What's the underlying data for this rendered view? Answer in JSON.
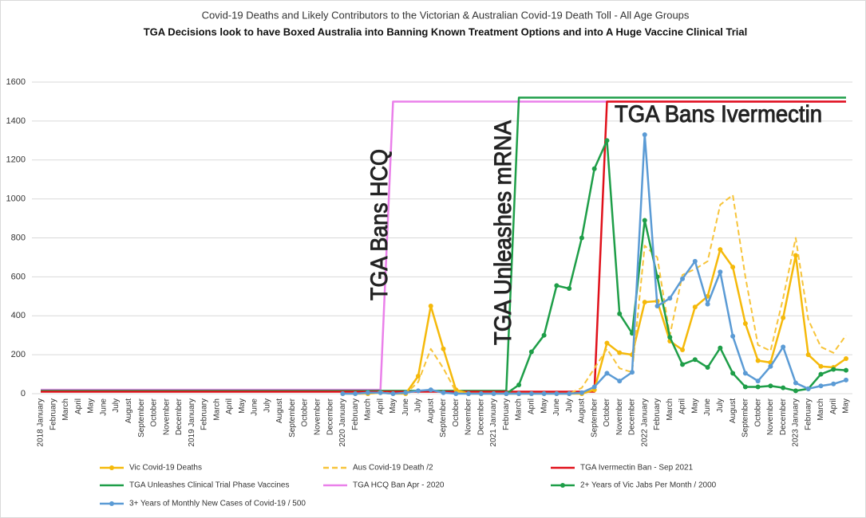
{
  "chart_data": {
    "type": "line",
    "title": "Covid-19 Deaths and Likely Contributors to the Victorian & Australian Covid-19 Death Toll - All Age Groups",
    "subtitle": "TGA Decisions look to have Boxed Australia into Banning Known Treatment Options and into A Huge Vaccine Clinical Trial",
    "annotations": [
      "TGA Bans HCQ",
      "TGA Unleashes mRNA",
      "TGA Bans Ivermectin"
    ],
    "categories": [
      "2018 January",
      "February",
      "March",
      "April",
      "May",
      "June",
      "July",
      "August",
      "September",
      "October",
      "November",
      "December",
      "2019 January",
      "February",
      "March",
      "April",
      "May",
      "June",
      "July",
      "August",
      "September",
      "October",
      "November",
      "December",
      "2020 January",
      "February",
      "March",
      "April",
      "May",
      "June",
      "July",
      "August",
      "September",
      "October",
      "November",
      "December",
      "2021 January",
      "February",
      "March",
      "April",
      "May",
      "June",
      "July",
      "August",
      "September",
      "October",
      "November",
      "December",
      "2022 January",
      "February",
      "March",
      "April",
      "May",
      "June",
      "July",
      "August",
      "September",
      "October",
      "November",
      "December",
      "2023 January",
      "February",
      "March",
      "April",
      "May"
    ],
    "ylim": [
      0,
      1600
    ],
    "yticks": [
      0,
      200,
      400,
      600,
      800,
      1000,
      1200,
      1400,
      1600
    ],
    "grid": true,
    "series": [
      {
        "name": "Vic Covid-19 Deaths",
        "color": "#f5b90a",
        "markers": true,
        "dashed": false,
        "values": [
          null,
          null,
          null,
          null,
          null,
          null,
          null,
          null,
          null,
          null,
          null,
          null,
          null,
          null,
          null,
          null,
          null,
          null,
          null,
          null,
          null,
          null,
          null,
          null,
          0,
          0,
          0,
          5,
          0,
          0,
          90,
          450,
          230,
          20,
          0,
          0,
          0,
          0,
          0,
          0,
          0,
          0,
          0,
          0,
          20,
          260,
          210,
          200,
          470,
          475,
          270,
          225,
          445,
          500,
          740,
          650,
          360,
          170,
          160,
          390,
          710,
          200,
          140,
          135,
          180
        ]
      },
      {
        "name": "Aus Covid-19 Death /2",
        "color": "#f7c43a",
        "markers": false,
        "dashed": true,
        "values": [
          null,
          null,
          null,
          null,
          null,
          null,
          null,
          null,
          null,
          null,
          null,
          null,
          null,
          null,
          null,
          null,
          null,
          null,
          null,
          null,
          null,
          null,
          null,
          null,
          0,
          0,
          0,
          10,
          0,
          0,
          60,
          230,
          130,
          10,
          0,
          0,
          0,
          0,
          0,
          0,
          0,
          0,
          0,
          30,
          130,
          230,
          130,
          110,
          760,
          700,
          300,
          610,
          640,
          680,
          970,
          1020,
          600,
          250,
          220,
          490,
          800,
          380,
          240,
          210,
          300
        ]
      },
      {
        "name": "TGA Ivermectin Ban - Sep 2021",
        "color": "#e0101a",
        "markers": false,
        "dashed": false,
        "values": [
          10,
          10,
          10,
          10,
          10,
          10,
          10,
          10,
          10,
          10,
          10,
          10,
          10,
          10,
          10,
          10,
          10,
          10,
          10,
          10,
          10,
          10,
          10,
          10,
          10,
          10,
          10,
          10,
          10,
          10,
          10,
          10,
          10,
          10,
          10,
          10,
          10,
          10,
          10,
          10,
          10,
          10,
          10,
          10,
          10,
          1500,
          1500,
          1500,
          1500,
          1500,
          1500,
          1500,
          1500,
          1500,
          1500,
          1500,
          1500,
          1500,
          1500,
          1500,
          1500,
          1500,
          1500,
          1500,
          1500
        ]
      },
      {
        "name": "TGA Unleashes Clinical Trial Phase Vaccines",
        "color": "#1e9e48",
        "markers": false,
        "dashed": false,
        "values": [
          15,
          15,
          15,
          15,
          15,
          15,
          15,
          15,
          15,
          15,
          15,
          15,
          15,
          15,
          15,
          15,
          15,
          15,
          15,
          15,
          15,
          15,
          15,
          15,
          15,
          15,
          15,
          15,
          15,
          15,
          15,
          15,
          15,
          15,
          15,
          15,
          15,
          15,
          1520,
          1520,
          1520,
          1520,
          1520,
          1520,
          1520,
          1520,
          1520,
          1520,
          1520,
          1520,
          1520,
          1520,
          1520,
          1520,
          1520,
          1520,
          1520,
          1520,
          1520,
          1520,
          1520,
          1520,
          1520,
          1520,
          1520
        ]
      },
      {
        "name": "TGA HCQ Ban Apr - 2020",
        "color": "#ea80ea",
        "markers": false,
        "dashed": false,
        "values": [
          20,
          20,
          20,
          20,
          20,
          20,
          20,
          20,
          20,
          20,
          20,
          20,
          20,
          20,
          20,
          20,
          20,
          20,
          20,
          20,
          20,
          20,
          20,
          20,
          20,
          20,
          20,
          20,
          1500,
          1500,
          1500,
          1500,
          1500,
          1500,
          1500,
          1500,
          1500,
          1500,
          1500,
          1500,
          1500,
          1500,
          1500,
          1500,
          1500,
          1500,
          1500,
          1500,
          1500,
          1500,
          1500,
          1500,
          1500,
          1500,
          1500,
          1500,
          1500,
          1500,
          1500,
          1500,
          1500,
          1500,
          1500,
          1500,
          1500
        ]
      },
      {
        "name": "2+ Years of Vic Jabs Per Month / 2000",
        "color": "#1e9e48",
        "markers": true,
        "dashed": false,
        "values": [
          null,
          null,
          null,
          null,
          null,
          null,
          null,
          null,
          null,
          null,
          null,
          null,
          null,
          null,
          null,
          null,
          null,
          null,
          null,
          null,
          null,
          null,
          null,
          null,
          null,
          null,
          null,
          null,
          null,
          null,
          null,
          null,
          null,
          null,
          null,
          null,
          null,
          0,
          45,
          215,
          300,
          555,
          540,
          800,
          1155,
          1300,
          410,
          310,
          890,
          600,
          290,
          150,
          175,
          135,
          235,
          105,
          35,
          35,
          40,
          30,
          15,
          25,
          100,
          125,
          120
        ]
      },
      {
        "name": "3+ Years of Monthly New Cases of Covid-19 / 500",
        "color": "#5b9bd5",
        "markers": true,
        "dashed": false,
        "values": [
          null,
          null,
          null,
          null,
          null,
          null,
          null,
          null,
          null,
          null,
          null,
          null,
          null,
          null,
          null,
          null,
          null,
          null,
          null,
          null,
          null,
          null,
          null,
          null,
          0,
          0,
          5,
          5,
          0,
          5,
          15,
          20,
          5,
          0,
          0,
          0,
          0,
          0,
          0,
          0,
          0,
          0,
          0,
          5,
          35,
          105,
          65,
          110,
          1330,
          450,
          490,
          590,
          680,
          460,
          625,
          295,
          105,
          65,
          140,
          240,
          55,
          25,
          40,
          50,
          70
        ]
      }
    ]
  }
}
